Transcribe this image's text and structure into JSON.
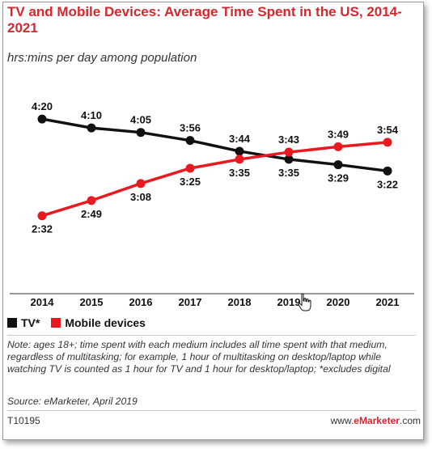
{
  "header": {
    "title": "TV and Mobile Devices: Average Time Spent in the US, 2014-2021",
    "subtitle": "hrs:mins per day among population"
  },
  "chart_data": {
    "type": "line",
    "title": "TV and Mobile Devices: Average Time Spent in the US, 2014-2021",
    "subtitle": "hrs:mins per day among population",
    "xlabel": "",
    "ylabel": "",
    "categories": [
      "2014",
      "2015",
      "2016",
      "2017",
      "2018",
      "2019",
      "2020",
      "2021"
    ],
    "units": "minutes per day",
    "ylim": [
      140,
      270
    ],
    "grid": false,
    "legend_placement": "bottom-left",
    "series": [
      {
        "name": "TV*",
        "color": "#111111",
        "values": [
          260,
          250,
          245,
          236,
          224,
          215,
          209,
          202
        ],
        "labels": [
          "4:20",
          "4:10",
          "4:05",
          "3:56",
          "3:44",
          "3:35",
          "3:29",
          "3:22"
        ]
      },
      {
        "name": "Mobile devices",
        "color": "#e8191f",
        "values": [
          152,
          169,
          188,
          205,
          215,
          223,
          229,
          234
        ],
        "labels": [
          "2:32",
          "2:49",
          "3:08",
          "3:25",
          "3:35",
          "3:43",
          "3:49",
          "3:54"
        ]
      }
    ]
  },
  "legend": {
    "items": [
      {
        "label": "TV*",
        "color": "#111111"
      },
      {
        "label": "Mobile devices",
        "color": "#e8191f"
      }
    ]
  },
  "footer": {
    "note": "Note: ages 18+; time spent with each medium includes all time spent with that medium, regardless of multitasking; for example, 1 hour of multitasking on desktop/laptop while watching TV is counted as 1 hour for TV and 1 hour for desktop/laptop; *excludes digital",
    "source": "Source: eMarketer, April 2019",
    "chart_id": "T10195",
    "brand_prefix": "www.",
    "brand_name": "eMarketer",
    "brand_suffix": ".com"
  },
  "icons": {
    "cursor": "hand-pointer-icon"
  }
}
